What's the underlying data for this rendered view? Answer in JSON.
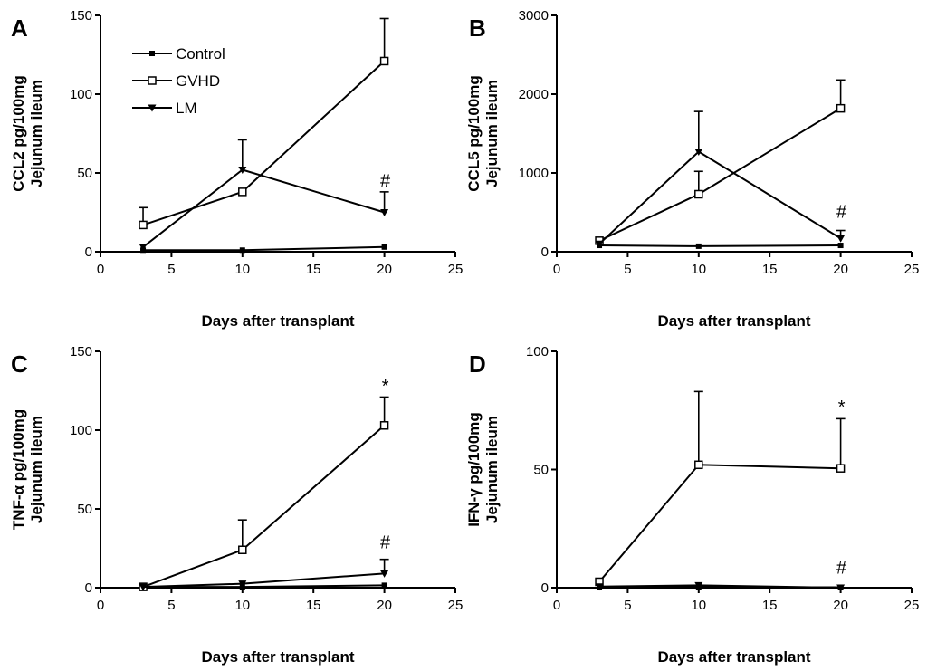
{
  "legend": {
    "items": [
      {
        "label": "Control",
        "marker": "square-filled"
      },
      {
        "label": "GVHD",
        "marker": "square-open"
      },
      {
        "label": "LM",
        "marker": "triangle-down-filled"
      }
    ]
  },
  "chart_data": [
    {
      "panel": "A",
      "type": "line",
      "ylabel_line1": "CCL2 pg/100mg",
      "ylabel_line2": "Jejunum ileum",
      "xlabel": "Days after transplant",
      "xlim": [
        0,
        25
      ],
      "ylim": [
        0,
        150
      ],
      "xticks": [
        0,
        5,
        10,
        15,
        20,
        25
      ],
      "yticks": [
        0,
        50,
        100,
        150
      ],
      "x": [
        3,
        10,
        20
      ],
      "series": [
        {
          "name": "Control",
          "values": [
            1,
            1,
            3
          ],
          "errors": [
            0,
            0,
            0
          ]
        },
        {
          "name": "GVHD",
          "values": [
            17,
            38,
            121
          ],
          "errors": [
            11,
            0,
            27
          ]
        },
        {
          "name": "LM",
          "values": [
            3,
            52,
            25
          ],
          "errors": [
            0,
            19,
            13
          ]
        }
      ],
      "annotations": [
        {
          "text": "#",
          "x": 20,
          "y": 41
        }
      ]
    },
    {
      "panel": "B",
      "type": "line",
      "ylabel_line1": "CCL5 pg/100mg",
      "ylabel_line2": "Jejunum ileum",
      "xlabel": "Days after transplant",
      "xlim": [
        0,
        25
      ],
      "ylim": [
        0,
        3000
      ],
      "xticks": [
        0,
        5,
        10,
        15,
        20,
        25
      ],
      "yticks": [
        0,
        1000,
        2000,
        3000
      ],
      "x": [
        3,
        10,
        20
      ],
      "series": [
        {
          "name": "Control",
          "values": [
            80,
            70,
            80
          ],
          "errors": [
            0,
            0,
            0
          ]
        },
        {
          "name": "GVHD",
          "values": [
            140,
            730,
            1820
          ],
          "errors": [
            0,
            290,
            360
          ]
        },
        {
          "name": "LM",
          "values": [
            100,
            1270,
            170
          ],
          "errors": [
            0,
            510,
            100
          ]
        }
      ],
      "annotations": [
        {
          "text": "#",
          "x": 20,
          "y": 430
        }
      ]
    },
    {
      "panel": "C",
      "type": "line",
      "ylabel_line1": "TNF-α pg/100mg",
      "ylabel_line2": "Jejunum ileum",
      "xlabel": "Days after transplant",
      "xlim": [
        0,
        25
      ],
      "ylim": [
        0,
        150
      ],
      "xticks": [
        0,
        5,
        10,
        15,
        20,
        25
      ],
      "yticks": [
        0,
        50,
        100,
        150
      ],
      "x": [
        3,
        10,
        20
      ],
      "series": [
        {
          "name": "Control",
          "values": [
            0.5,
            0.5,
            1.5
          ],
          "errors": [
            0,
            0,
            0
          ]
        },
        {
          "name": "GVHD",
          "values": [
            0.5,
            24,
            103
          ],
          "errors": [
            0,
            19,
            18
          ]
        },
        {
          "name": "LM",
          "values": [
            0.5,
            2.5,
            9
          ],
          "errors": [
            0,
            0,
            9
          ]
        }
      ],
      "annotations": [
        {
          "text": "*",
          "x": 20,
          "y": 124
        },
        {
          "text": "#",
          "x": 20,
          "y": 25
        }
      ]
    },
    {
      "panel": "D",
      "type": "line",
      "ylabel_line1": "IFN-γ pg/100mg",
      "ylabel_line2": "Jejunum ileum",
      "xlabel": "Days after transplant",
      "xlim": [
        0,
        25
      ],
      "ylim": [
        0,
        100
      ],
      "xticks": [
        0,
        5,
        10,
        15,
        20,
        25
      ],
      "yticks": [
        0,
        50,
        100
      ],
      "x": [
        3,
        10,
        20
      ],
      "series": [
        {
          "name": "Control",
          "values": [
            0.2,
            0.2,
            0.2
          ],
          "errors": [
            0,
            0,
            0
          ]
        },
        {
          "name": "GVHD",
          "values": [
            2.5,
            52,
            50.5
          ],
          "errors": [
            0,
            31,
            21
          ]
        },
        {
          "name": "LM",
          "values": [
            0.5,
            1,
            0
          ],
          "errors": [
            0,
            0,
            0
          ]
        }
      ],
      "annotations": [
        {
          "text": "*",
          "x": 20,
          "y": 74
        },
        {
          "text": "#",
          "x": 20,
          "y": 6
        }
      ]
    }
  ]
}
